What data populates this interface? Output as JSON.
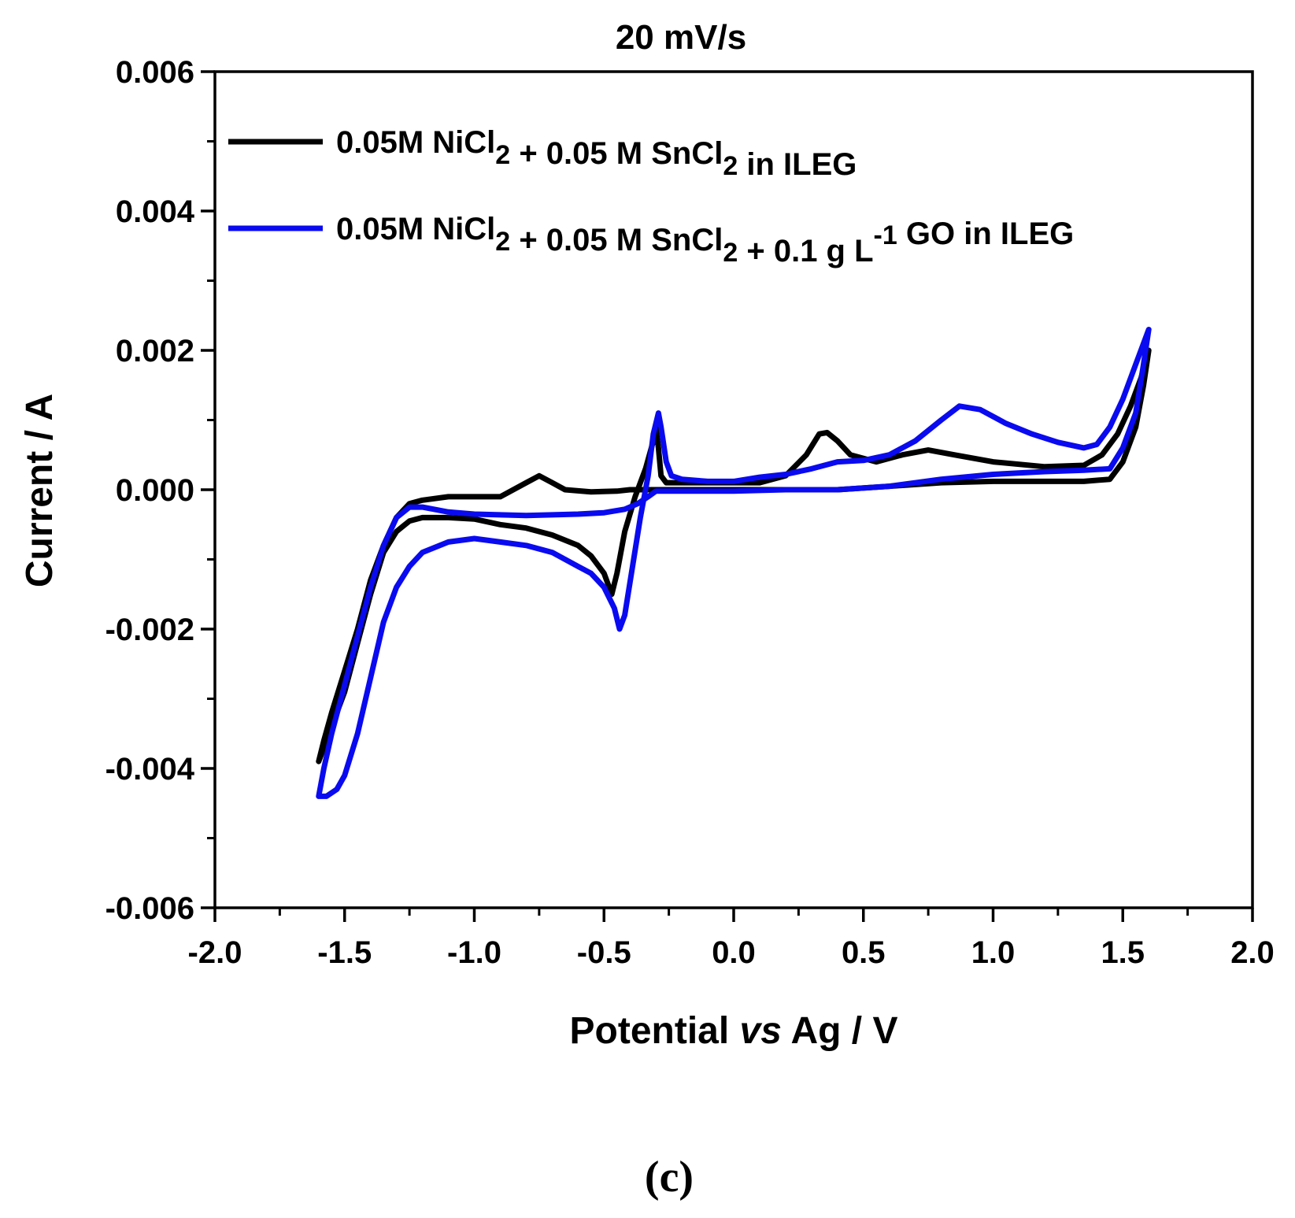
{
  "chart_data": {
    "type": "line",
    "title": "20 mV/s",
    "panel_label": "(c)",
    "xlabel": {
      "pre": "Potential ",
      "italic": "vs",
      "post": " Ag / V"
    },
    "ylabel": "Current / A",
    "xlim": [
      -2.0,
      2.0
    ],
    "ylim": [
      -0.006,
      0.006
    ],
    "x_ticks": [
      -2.0,
      -1.5,
      -1.0,
      -0.5,
      0.0,
      0.5,
      1.0,
      1.5,
      2.0
    ],
    "x_tick_labels": [
      "-2.0",
      "-1.5",
      "-1.0",
      "-0.5",
      "0.0",
      "0.5",
      "1.0",
      "1.5",
      "2.0"
    ],
    "y_ticks": [
      0.006,
      0.004,
      0.002,
      0.0,
      -0.002,
      -0.004,
      -0.006
    ],
    "y_tick_labels": [
      "0.006",
      "0.004",
      "0.002",
      "0.000",
      "-0.002",
      "-0.004",
      "-0.006"
    ],
    "grid": false,
    "legend_position": "top-left",
    "series": [
      {
        "name": "0.05M NiCl2 + 0.05 M SnCl2 in ILEG",
        "legend_parts": [
          [
            "t",
            "0.05M NiCl"
          ],
          [
            "sub",
            "2"
          ],
          [
            "t",
            " + 0.05 M SnCl"
          ],
          [
            "sub",
            "2"
          ],
          [
            "t",
            " in ILEG"
          ]
        ],
        "color": "#000000",
        "points": [
          [
            -1.6,
            -0.0039
          ],
          [
            -1.58,
            -0.0037
          ],
          [
            -1.55,
            -0.0034
          ],
          [
            -1.5,
            -0.0029
          ],
          [
            -1.45,
            -0.0022
          ],
          [
            -1.4,
            -0.0015
          ],
          [
            -1.35,
            -0.0009
          ],
          [
            -1.3,
            -0.0006
          ],
          [
            -1.25,
            -0.00045
          ],
          [
            -1.2,
            -0.0004
          ],
          [
            -1.1,
            -0.0004
          ],
          [
            -1.0,
            -0.00042
          ],
          [
            -0.9,
            -0.0005
          ],
          [
            -0.8,
            -0.00055
          ],
          [
            -0.7,
            -0.00065
          ],
          [
            -0.6,
            -0.0008
          ],
          [
            -0.55,
            -0.00095
          ],
          [
            -0.5,
            -0.0012
          ],
          [
            -0.47,
            -0.0015
          ],
          [
            -0.45,
            -0.0012
          ],
          [
            -0.42,
            -0.0006
          ],
          [
            -0.38,
            -0.0001
          ],
          [
            -0.34,
            0.0003
          ],
          [
            -0.31,
            0.0007
          ],
          [
            -0.3,
            0.0009
          ],
          [
            -0.29,
            0.0006
          ],
          [
            -0.28,
            0.0002
          ],
          [
            -0.26,
            0.0001
          ],
          [
            -0.2,
            0.0001
          ],
          [
            -0.1,
            0.0001
          ],
          [
            0.0,
            0.0001
          ],
          [
            0.1,
            0.0001
          ],
          [
            0.2,
            0.0002
          ],
          [
            0.28,
            0.0005
          ],
          [
            0.33,
            0.0008
          ],
          [
            0.36,
            0.00082
          ],
          [
            0.4,
            0.0007
          ],
          [
            0.45,
            0.0005
          ],
          [
            0.55,
            0.0004
          ],
          [
            0.65,
            0.0005
          ],
          [
            0.75,
            0.00057
          ],
          [
            0.85,
            0.0005
          ],
          [
            1.0,
            0.0004
          ],
          [
            1.2,
            0.00033
          ],
          [
            1.35,
            0.00035
          ],
          [
            1.42,
            0.0005
          ],
          [
            1.48,
            0.0008
          ],
          [
            1.53,
            0.0012
          ],
          [
            1.57,
            0.0016
          ],
          [
            1.6,
            0.002
          ],
          [
            1.58,
            0.0015
          ],
          [
            1.55,
            0.0009
          ],
          [
            1.5,
            0.0004
          ],
          [
            1.45,
            0.00015
          ],
          [
            1.35,
            0.00012
          ],
          [
            1.2,
            0.00012
          ],
          [
            1.0,
            0.00012
          ],
          [
            0.8,
            0.0001
          ],
          [
            0.6,
            5e-05
          ],
          [
            0.4,
            0.0
          ],
          [
            0.2,
            0.0
          ],
          [
            0.0,
            0.0
          ],
          [
            -0.2,
            0.0
          ],
          [
            -0.3,
            0.0
          ],
          [
            -0.35,
            0.0
          ],
          [
            -0.4,
            0.0
          ],
          [
            -0.45,
            -2e-05
          ],
          [
            -0.55,
            -3e-05
          ],
          [
            -0.65,
            0.0
          ],
          [
            -0.7,
            0.0001
          ],
          [
            -0.75,
            0.0002
          ],
          [
            -0.8,
            0.0001
          ],
          [
            -0.9,
            -0.0001
          ],
          [
            -1.0,
            -0.0001
          ],
          [
            -1.1,
            -0.0001
          ],
          [
            -1.2,
            -0.00015
          ],
          [
            -1.25,
            -0.0002
          ],
          [
            -1.3,
            -0.0004
          ],
          [
            -1.35,
            -0.0008
          ],
          [
            -1.4,
            -0.0013
          ],
          [
            -1.45,
            -0.002
          ],
          [
            -1.5,
            -0.0026
          ],
          [
            -1.55,
            -0.0032
          ],
          [
            -1.58,
            -0.0036
          ],
          [
            -1.6,
            -0.0039
          ]
        ]
      },
      {
        "name": "0.05M NiCl2 + 0.05 M SnCl2 + 0.1 g L-1 GO in ILEG",
        "legend_parts": [
          [
            "t",
            "0.05M NiCl"
          ],
          [
            "sub",
            "2"
          ],
          [
            "t",
            " + 0.05 M SnCl"
          ],
          [
            "sub",
            "2"
          ],
          [
            "t",
            " + 0.1 g L"
          ],
          [
            "sup",
            "-1"
          ],
          [
            "t",
            " GO in ILEG"
          ]
        ],
        "color": "#0a0af0",
        "points": [
          [
            -1.6,
            -0.0044
          ],
          [
            -1.57,
            -0.0044
          ],
          [
            -1.53,
            -0.0043
          ],
          [
            -1.5,
            -0.0041
          ],
          [
            -1.45,
            -0.0035
          ],
          [
            -1.4,
            -0.0027
          ],
          [
            -1.35,
            -0.0019
          ],
          [
            -1.3,
            -0.0014
          ],
          [
            -1.25,
            -0.0011
          ],
          [
            -1.2,
            -0.0009
          ],
          [
            -1.1,
            -0.00075
          ],
          [
            -1.0,
            -0.0007
          ],
          [
            -0.9,
            -0.00075
          ],
          [
            -0.8,
            -0.0008
          ],
          [
            -0.7,
            -0.0009
          ],
          [
            -0.6,
            -0.0011
          ],
          [
            -0.55,
            -0.0012
          ],
          [
            -0.5,
            -0.0014
          ],
          [
            -0.46,
            -0.0017
          ],
          [
            -0.44,
            -0.002
          ],
          [
            -0.42,
            -0.0018
          ],
          [
            -0.39,
            -0.0011
          ],
          [
            -0.36,
            -0.0004
          ],
          [
            -0.33,
            0.0002
          ],
          [
            -0.31,
            0.0008
          ],
          [
            -0.29,
            0.0011
          ],
          [
            -0.28,
            0.0009
          ],
          [
            -0.26,
            0.0004
          ],
          [
            -0.24,
            0.0002
          ],
          [
            -0.2,
            0.00015
          ],
          [
            -0.1,
            0.00012
          ],
          [
            0.0,
            0.00012
          ],
          [
            0.1,
            0.00018
          ],
          [
            0.2,
            0.00022
          ],
          [
            0.3,
            0.0003
          ],
          [
            0.4,
            0.0004
          ],
          [
            0.5,
            0.00042
          ],
          [
            0.6,
            0.0005
          ],
          [
            0.7,
            0.0007
          ],
          [
            0.8,
            0.001
          ],
          [
            0.87,
            0.0012
          ],
          [
            0.95,
            0.00115
          ],
          [
            1.05,
            0.00095
          ],
          [
            1.15,
            0.0008
          ],
          [
            1.25,
            0.00068
          ],
          [
            1.35,
            0.0006
          ],
          [
            1.4,
            0.00065
          ],
          [
            1.45,
            0.0009
          ],
          [
            1.5,
            0.0013
          ],
          [
            1.55,
            0.0018
          ],
          [
            1.6,
            0.0023
          ],
          [
            1.58,
            0.0018
          ],
          [
            1.55,
            0.0011
          ],
          [
            1.5,
            0.0006
          ],
          [
            1.45,
            0.0003
          ],
          [
            1.35,
            0.00028
          ],
          [
            1.2,
            0.00026
          ],
          [
            1.0,
            0.00022
          ],
          [
            0.8,
            0.00015
          ],
          [
            0.6,
            5e-05
          ],
          [
            0.4,
            0.0
          ],
          [
            0.2,
            0.0
          ],
          [
            0.0,
            -2e-05
          ],
          [
            -0.2,
            -2e-05
          ],
          [
            -0.3,
            -2e-05
          ],
          [
            -0.33,
            -0.0001
          ],
          [
            -0.37,
            -0.0002
          ],
          [
            -0.42,
            -0.00028
          ],
          [
            -0.5,
            -0.00033
          ],
          [
            -0.6,
            -0.00035
          ],
          [
            -0.8,
            -0.00037
          ],
          [
            -1.0,
            -0.00035
          ],
          [
            -1.1,
            -0.00032
          ],
          [
            -1.2,
            -0.00025
          ],
          [
            -1.25,
            -0.00025
          ],
          [
            -1.3,
            -0.0004
          ],
          [
            -1.35,
            -0.0008
          ],
          [
            -1.4,
            -0.0014
          ],
          [
            -1.45,
            -0.0021
          ],
          [
            -1.5,
            -0.0028
          ],
          [
            -1.55,
            -0.0035
          ],
          [
            -1.58,
            -0.004
          ],
          [
            -1.6,
            -0.0044
          ]
        ]
      }
    ]
  }
}
